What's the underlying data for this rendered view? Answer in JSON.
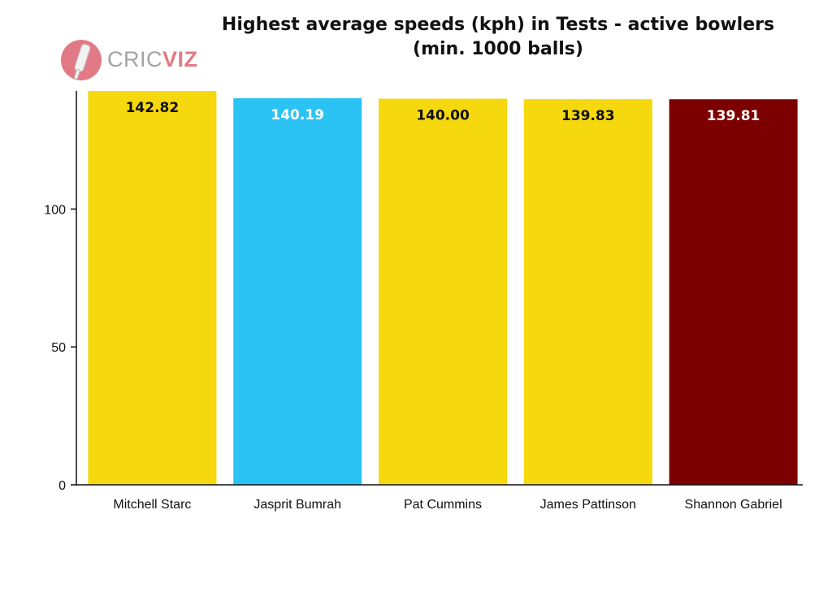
{
  "brand": {
    "logo_part1": "CRIC",
    "logo_part2": "VIZ",
    "logo_colors": {
      "cric": "#a3a3a3",
      "viz": "#e27a86",
      "badge": "#e27a86"
    }
  },
  "chart_data": {
    "type": "bar",
    "title": "Highest average speeds (kph) in Tests - active bowlers",
    "subtitle": "(min. 1000 balls)",
    "categories": [
      "Mitchell Starc",
      "Jasprit Bumrah",
      "Pat Cummins",
      "James Pattinson",
      "Shannon Gabriel"
    ],
    "values": [
      142.82,
      140.19,
      140.0,
      139.83,
      139.81
    ],
    "value_labels": [
      "142.82",
      "140.19",
      "140.00",
      "139.83",
      "139.81"
    ],
    "bar_colors": [
      "#f5d80e",
      "#2bc3f3",
      "#f5d80e",
      "#f5d80e",
      "#7d0000"
    ],
    "label_colors": [
      "#111111",
      "#ffffff",
      "#111111",
      "#111111",
      "#ffffff"
    ],
    "yticks": [
      0,
      50,
      100
    ],
    "ylim": [
      0,
      142.82
    ],
    "xlabel": "",
    "ylabel": "",
    "grid": false,
    "legend": "none"
  }
}
